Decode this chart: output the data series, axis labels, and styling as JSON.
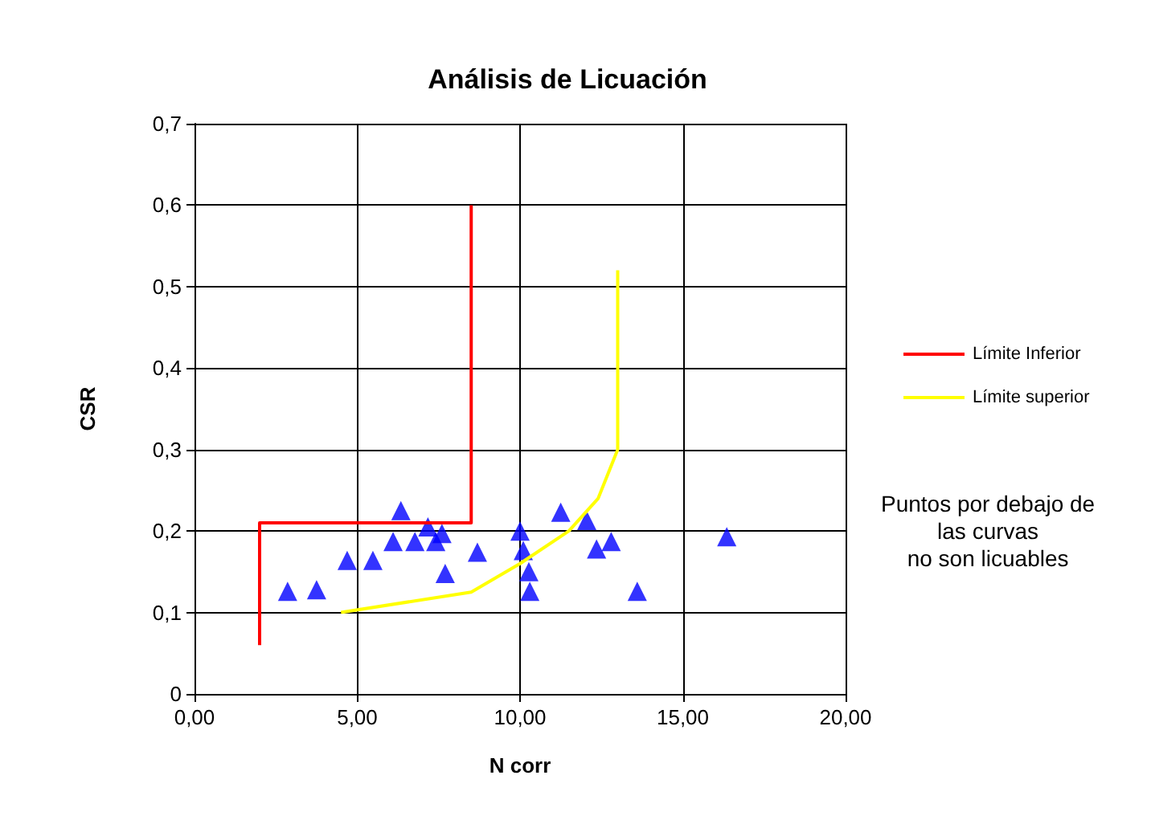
{
  "chart_data": {
    "type": "scatter",
    "title": "Análisis de Licuación",
    "xlabel": "N corr",
    "ylabel": "CSR",
    "xlim": [
      0,
      20
    ],
    "ylim": [
      0,
      0.7
    ],
    "xticks": [
      {
        "value": 0,
        "label": "0,00"
      },
      {
        "value": 5,
        "label": "5,00"
      },
      {
        "value": 10,
        "label": "10,00"
      },
      {
        "value": 15,
        "label": "15,00"
      },
      {
        "value": 20,
        "label": "20,00"
      }
    ],
    "yticks": [
      {
        "value": 0,
        "label": "0"
      },
      {
        "value": 0.1,
        "label": "0,1"
      },
      {
        "value": 0.2,
        "label": "0,2"
      },
      {
        "value": 0.3,
        "label": "0,3"
      },
      {
        "value": 0.4,
        "label": "0,4"
      },
      {
        "value": 0.5,
        "label": "0,5"
      },
      {
        "value": 0.6,
        "label": "0,6"
      },
      {
        "value": 0.7,
        "label": "0,7"
      }
    ],
    "grid": true,
    "legend": "right",
    "marker": "triangle",
    "series": [
      {
        "color": "#0000ff",
        "x": [
          2.86,
          3.75,
          4.69,
          5.48,
          6.1,
          6.34,
          6.77,
          7.17,
          7.41,
          7.6,
          7.7,
          8.69,
          10.0,
          10.1,
          10.27,
          10.3,
          11.25,
          12.05,
          12.35,
          12.8,
          13.6,
          16.35
        ],
        "values": [
          0.126,
          0.128,
          0.164,
          0.164,
          0.187,
          0.225,
          0.187,
          0.205,
          0.187,
          0.197,
          0.148,
          0.174,
          0.2,
          0.176,
          0.15,
          0.126,
          0.223,
          0.213,
          0.178,
          0.187,
          0.126,
          0.193
        ]
      },
      {
        "type": "line",
        "name": "Límite Inferior",
        "color": "#ff0000",
        "marker": "none",
        "x": [
          2,
          2,
          8.5,
          8.5
        ],
        "values": [
          0.06,
          0.21,
          0.21,
          0.6
        ]
      },
      {
        "type": "line",
        "name": "Límite superior",
        "color": "#ffff00",
        "marker": "none",
        "x": [
          4.5,
          8.5,
          10,
          11.5,
          12.4,
          13,
          13
        ],
        "values": [
          0.1,
          0.125,
          0.16,
          0.2,
          0.24,
          0.3,
          0.52
        ]
      }
    ],
    "annotations": [
      "Puntos por debajo de\nlas curvas\nno son licuables"
    ]
  }
}
